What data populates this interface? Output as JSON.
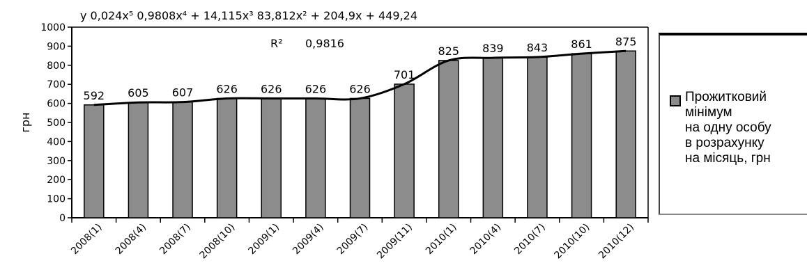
{
  "chart_data": {
    "type": "bar",
    "categories": [
      "2008(1)",
      "2008(4)",
      "2008(7)",
      "2008(10)",
      "2009(1)",
      "2009(4)",
      "2009(7)",
      "2009(11)",
      "2010(1)",
      "2010(4)",
      "2010(7)",
      "2010(10)",
      "2010(12)"
    ],
    "values": [
      592,
      605,
      607,
      626,
      626,
      626,
      626,
      701,
      825,
      839,
      843,
      861,
      875
    ],
    "data_labels": [
      "592",
      "605",
      "607",
      "626",
      "626",
      "626",
      "626",
      "701",
      "825",
      "839",
      "843",
      "861",
      "875"
    ],
    "ylabel": "грн",
    "ylim": [
      0,
      1000
    ],
    "y_ticks": [
      "0",
      "100",
      "200",
      "300",
      "400",
      "500",
      "600",
      "700",
      "800",
      "900",
      "1000"
    ],
    "bar_color": "#8c8c8c",
    "trendline": {
      "type": "polynomial",
      "equation": "y = -0,024x⁵ + 0,9808x⁴ + 14,115x³ - 83,812x² + 204,9x + 449,24",
      "equation_text": "y   0,024x⁵   0,9808x⁴ + 14,115x³   83,812x² + 204,9x + 449,24",
      "r2_label": "R²",
      "r2_value": "0,9816",
      "coefficients": [
        -0.024,
        0.9808,
        14.115,
        -83.812,
        204.9,
        449.24
      ]
    },
    "legend": {
      "position": "right",
      "label": "Прожитковий\nмінімум\nна одну особу\nв розрахунку\nна місяць, грн"
    },
    "grid": false
  }
}
